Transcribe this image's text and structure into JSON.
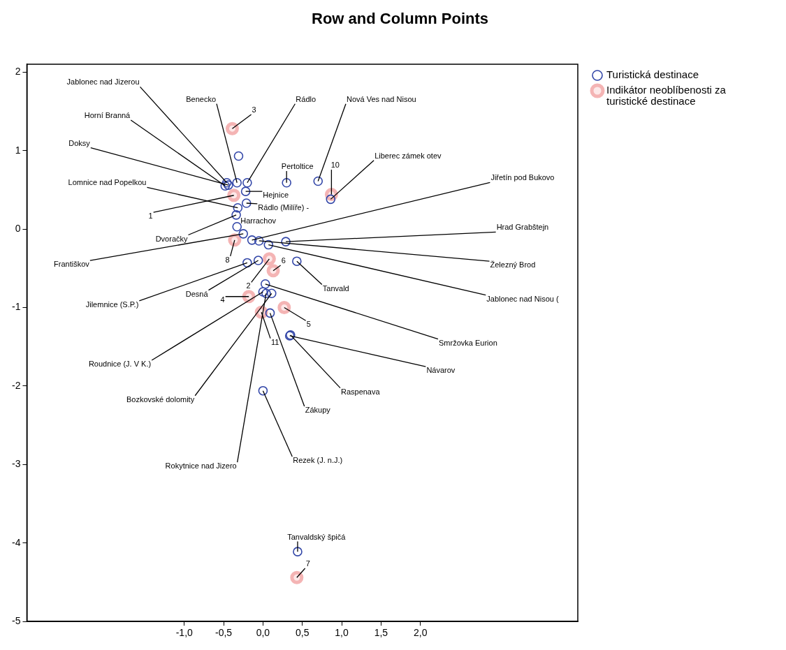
{
  "chart_data": {
    "type": "scatter",
    "title": "Row and Column Points",
    "xlim": [
      -3,
      4
    ],
    "ylim": [
      -5,
      2.1
    ],
    "xticks": [
      {
        "value": -1,
        "label": "-1,0"
      },
      {
        "value": -0.5,
        "label": "-0,5"
      },
      {
        "value": 0,
        "label": "0,0"
      },
      {
        "value": 0.5,
        "label": "0,5"
      },
      {
        "value": 1,
        "label": "1,0"
      },
      {
        "value": 1.5,
        "label": "1,5"
      },
      {
        "value": 2,
        "label": "2,0"
      }
    ],
    "yticks": [
      -5,
      -4,
      -3,
      -2,
      -1,
      0,
      1,
      2
    ],
    "grid": false,
    "legend": "top right",
    "marker": "circle",
    "series": [
      {
        "name": "Turistická destinace",
        "color": "#3347a8",
        "x": [
          -0.46,
          -0.33,
          -0.2,
          0.7,
          -0.48,
          -0.44,
          -0.32,
          0.3,
          0.86,
          -0.22,
          -0.21,
          -0.33,
          -0.14,
          -0.34,
          0.29,
          -0.25,
          -0.05,
          0.43,
          -0.2,
          -0.06,
          0.07,
          0.03,
          0.34,
          0,
          0.35,
          0.11,
          0.09,
          0.04,
          0,
          0.44,
          -0.31
        ],
        "values": [
          0.59,
          0.59,
          0.59,
          0.61,
          0.55,
          0.56,
          0.27,
          0.59,
          0.38,
          0.48,
          0.33,
          0.03,
          -0.14,
          0.18,
          -0.16,
          -0.06,
          -0.15,
          -0.41,
          -0.43,
          -0.4,
          -0.2,
          -0.7,
          -1.36,
          -0.8,
          -1.35,
          -0.82,
          -1.07,
          -0.82,
          -2.06,
          -4.11,
          0.93
        ]
      },
      {
        "name": "Indikátor neoblíbenosti za turistické destinace",
        "color": "#f4b4b4",
        "x": [
          -0.37,
          0.08,
          -0.39,
          -0.18,
          0.27,
          0.13,
          0.43,
          -0.36,
          0.87,
          -0.02
        ],
        "values": [
          0.43,
          -0.38,
          1.28,
          -0.86,
          -1.0,
          -0.53,
          -4.44,
          -0.14,
          0.44,
          -1.06
        ]
      }
    ],
    "annotations": [
      {
        "text": "Jablonec nad Jizerou",
        "x": -0.46,
        "y": 0.59
      },
      {
        "text": "Benecko",
        "x": -0.33,
        "y": 0.59
      },
      {
        "text": "Rádlo",
        "x": -0.2,
        "y": 0.59
      },
      {
        "text": "Nová Ves nad Nisou",
        "x": 0.7,
        "y": 0.61
      },
      {
        "text": "Horní Branná",
        "x": -0.48,
        "y": 0.55
      },
      {
        "text": "Doksy",
        "x": -0.44,
        "y": 0.56
      },
      {
        "text": "Lomnice nad Popelkou",
        "x": -0.32,
        "y": 0.27
      },
      {
        "text": "Pertoltice",
        "x": 0.3,
        "y": 0.59
      },
      {
        "text": "Liberec zámek otev",
        "x": 0.86,
        "y": 0.38
      },
      {
        "text": "Hejnice",
        "x": -0.22,
        "y": 0.48
      },
      {
        "text": "Rádlo (Milíře) -",
        "x": -0.21,
        "y": 0.33
      },
      {
        "text": "Harrachov",
        "x": -0.33,
        "y": 0.03
      },
      {
        "text": "Jiřetín pod Bukovo",
        "x": -0.14,
        "y": -0.14
      },
      {
        "text": "Dvoračky",
        "x": -0.34,
        "y": 0.18
      },
      {
        "text": "Hrad Grabštejn",
        "x": 0.29,
        "y": -0.16
      },
      {
        "text": "Františkov",
        "x": -0.25,
        "y": -0.06
      },
      {
        "text": "Železný Brod",
        "x": -0.05,
        "y": -0.15
      },
      {
        "text": "Tanvald",
        "x": 0.43,
        "y": -0.41
      },
      {
        "text": "Jilemnice (S.P.)",
        "x": -0.2,
        "y": -0.43
      },
      {
        "text": "Desná",
        "x": -0.06,
        "y": -0.4
      },
      {
        "text": "Jablonec nad Nisou (",
        "x": 0.07,
        "y": -0.2
      },
      {
        "text": "Smržovka Eurion",
        "x": 0.03,
        "y": -0.7
      },
      {
        "text": "Návarov",
        "x": 0.34,
        "y": -1.36
      },
      {
        "text": "Roudnice (J. V K.)",
        "x": 0,
        "y": -0.8
      },
      {
        "text": "Raspenava",
        "x": 0.35,
        "y": -1.35
      },
      {
        "text": "Bozkovské dolomity",
        "x": 0.11,
        "y": -0.82
      },
      {
        "text": "Zákupy",
        "x": 0.09,
        "y": -1.07
      },
      {
        "text": "Rokytnice nad Jizero",
        "x": 0.04,
        "y": -0.82
      },
      {
        "text": "Rezek (J. n.J.)",
        "x": 0,
        "y": -2.06
      },
      {
        "text": "Tanvaldský špičá",
        "x": 0.44,
        "y": -4.11
      },
      {
        "text": "1",
        "x": -0.37,
        "y": 0.43
      },
      {
        "text": "2",
        "x": 0.08,
        "y": -0.38
      },
      {
        "text": "3",
        "x": -0.39,
        "y": 1.28
      },
      {
        "text": "4",
        "x": -0.18,
        "y": -0.86
      },
      {
        "text": "5",
        "x": 0.27,
        "y": -1.0
      },
      {
        "text": "6",
        "x": 0.13,
        "y": -0.53
      },
      {
        "text": "7",
        "x": 0.43,
        "y": -4.44
      },
      {
        "text": "8",
        "x": -0.36,
        "y": -0.14
      },
      {
        "text": "10",
        "x": 0.87,
        "y": 0.44
      },
      {
        "text": "11",
        "x": -0.02,
        "y": -1.06
      }
    ]
  }
}
